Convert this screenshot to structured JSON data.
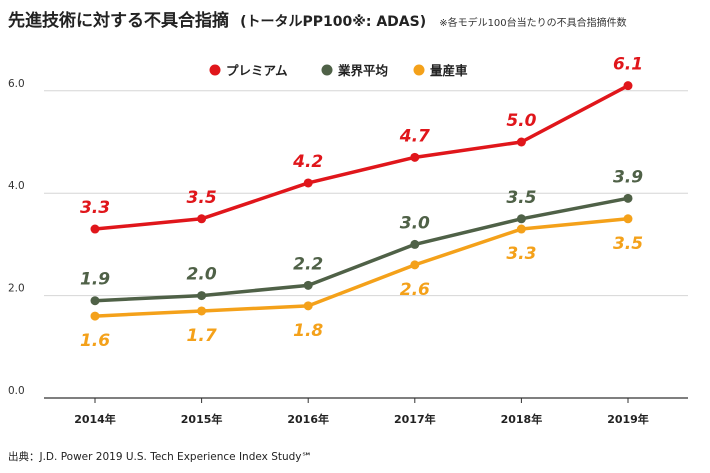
{
  "page_title": "先進技術に対する不具合指摘 (トータルPP100※: ADAS) ※各モデル100台当たりの不具合指摘件数",
  "chart_data": {
    "type": "line",
    "title": "先進技術に対する不具合指摘",
    "subtitle": "(トータルPP100※: ADAS)",
    "note": "※各モデル100台当たりの不具合指摘件数",
    "categories": [
      "2014年",
      "2015年",
      "2016年",
      "2017年",
      "2018年",
      "2019年"
    ],
    "ylim": [
      0,
      6.5
    ],
    "yticks": [
      "0.0",
      "2.0",
      "4.0",
      "6.0"
    ],
    "ytick_values": [
      0,
      2,
      4,
      6
    ],
    "grid": true,
    "legend_position": "top-center",
    "series": [
      {
        "name": "プレミアム",
        "color": "#e0161b",
        "values": [
          3.3,
          3.5,
          4.2,
          4.7,
          5.0,
          6.1
        ],
        "labels": [
          "3.3",
          "3.5",
          "4.2",
          "4.7",
          "5.0",
          "6.1"
        ]
      },
      {
        "name": "業界平均",
        "color": "#4f6147",
        "values": [
          1.9,
          2.0,
          2.2,
          3.0,
          3.5,
          3.9
        ],
        "labels": [
          "1.9",
          "2.0",
          "2.2",
          "3.0",
          "3.5",
          "3.9"
        ]
      },
      {
        "name": "量産車",
        "color": "#f4a11a",
        "values": [
          1.6,
          1.7,
          1.8,
          2.6,
          3.3,
          3.5
        ],
        "labels": [
          "1.6",
          "1.7",
          "1.8",
          "2.6",
          "3.3",
          "3.5"
        ]
      }
    ],
    "source": "出典：J.D. Power 2019 U.S. Tech Experience Index Study℠"
  }
}
